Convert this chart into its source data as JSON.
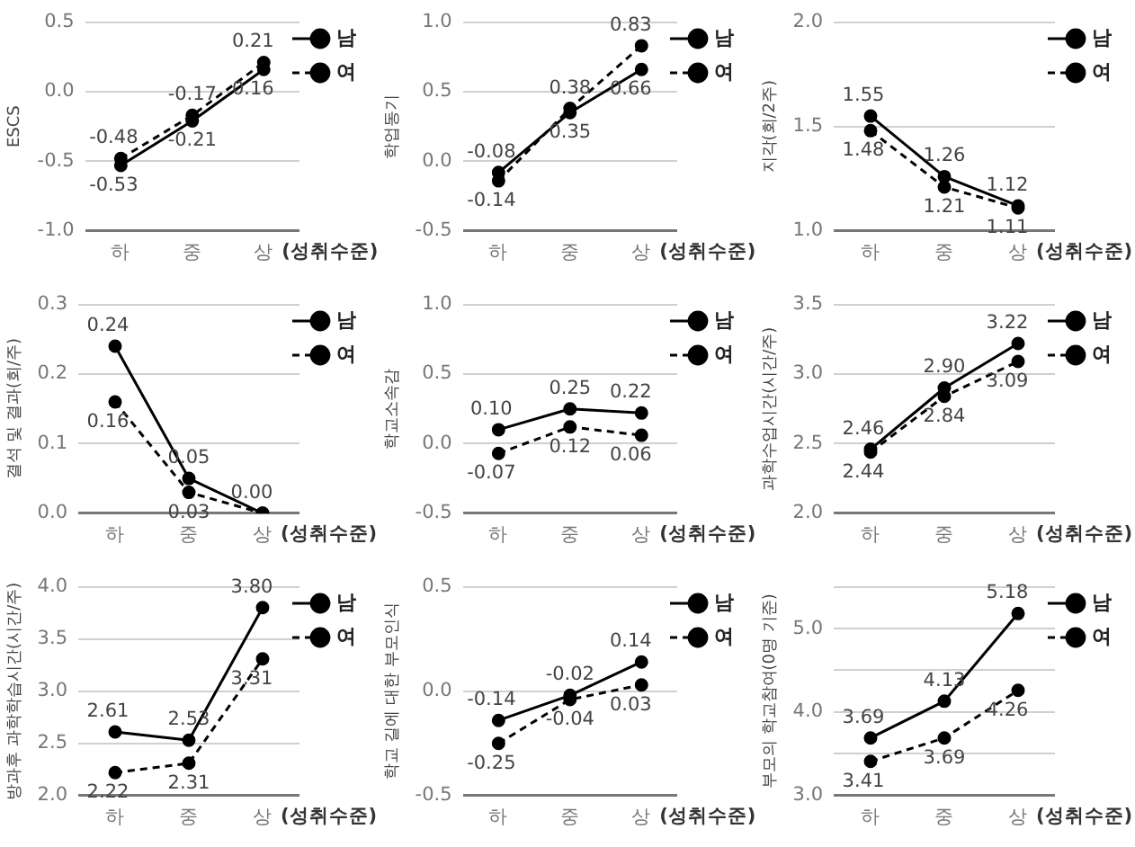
{
  "chart_data": [
    {
      "type": "line",
      "ylabel": "ESCS",
      "xlabel": "(성취수준)",
      "categories": [
        "하",
        "중",
        "상"
      ],
      "ylim": [
        -1.0,
        0.5
      ],
      "yticks": [
        {
          "value": -1.0,
          "label": "-1.0"
        },
        {
          "value": -0.5,
          "label": "-0.5"
        },
        {
          "value": 0,
          "label": "0.0"
        },
        {
          "value": 0.5,
          "label": "0.5"
        }
      ],
      "grid": "y",
      "legend": "top right",
      "marker": "circle",
      "series": [
        {
          "name": "남",
          "color": "#000000",
          "line_style": "solid",
          "values": [
            -0.53,
            -0.21,
            0.16
          ],
          "value_labels": [
            "-0.53",
            "-0.21",
            "0.16"
          ]
        },
        {
          "name": "여",
          "color": "#000000",
          "line_style": "dashed",
          "values": [
            -0.48,
            -0.17,
            0.21
          ],
          "value_labels": [
            "-0.48",
            "-0.17",
            "0.21"
          ]
        }
      ]
    },
    {
      "type": "line",
      "ylabel": "학업동기",
      "xlabel": "(성취수준)",
      "categories": [
        "하",
        "중",
        "상"
      ],
      "ylim": [
        -0.5,
        1.0
      ],
      "yticks": [
        {
          "value": -0.5,
          "label": "-0.5"
        },
        {
          "value": 0,
          "label": "0.0"
        },
        {
          "value": 0.5,
          "label": "0.5"
        },
        {
          "value": 1.0,
          "label": "1.0"
        }
      ],
      "grid": "y",
      "legend": "top right",
      "marker": "circle",
      "series": [
        {
          "name": "남",
          "color": "#000000",
          "line_style": "solid",
          "values": [
            -0.08,
            0.35,
            0.66
          ],
          "value_labels": [
            "-0.08",
            "0.35",
            "0.66"
          ]
        },
        {
          "name": "여",
          "color": "#000000",
          "line_style": "dashed",
          "values": [
            -0.14,
            0.38,
            0.83
          ],
          "value_labels": [
            "-0.14",
            "0.38",
            "0.83"
          ]
        }
      ]
    },
    {
      "type": "line",
      "ylabel": "지각(회/2주)",
      "xlabel": "(성취수준)",
      "categories": [
        "하",
        "중",
        "상"
      ],
      "ylim": [
        1.0,
        2.0
      ],
      "yticks": [
        {
          "value": 1.0,
          "label": "1.0"
        },
        {
          "value": 1.5,
          "label": "1.5"
        },
        {
          "value": 2.0,
          "label": "2.0"
        }
      ],
      "grid": "y",
      "legend": "top right",
      "marker": "circle",
      "series": [
        {
          "name": "남",
          "color": "#000000",
          "line_style": "solid",
          "values": [
            1.55,
            1.26,
            1.12
          ],
          "value_labels": [
            "1.55",
            "1.26",
            "1.12"
          ]
        },
        {
          "name": "여",
          "color": "#000000",
          "line_style": "dashed",
          "values": [
            1.48,
            1.21,
            1.11
          ],
          "value_labels": [
            "1.48",
            "1.21",
            "1.11"
          ]
        }
      ]
    },
    {
      "type": "line",
      "ylabel": "결석 및 결과(회/주)",
      "xlabel": "(성취수준)",
      "categories": [
        "하",
        "중",
        "상"
      ],
      "ylim": [
        0,
        0.3
      ],
      "yticks": [
        {
          "value": 0,
          "label": "0.0"
        },
        {
          "value": 0.1,
          "label": "0.1"
        },
        {
          "value": 0.2,
          "label": "0.2"
        },
        {
          "value": 0.3,
          "label": "0.3"
        }
      ],
      "grid": "y",
      "legend": "top right",
      "marker": "circle",
      "series": [
        {
          "name": "남",
          "color": "#000000",
          "line_style": "solid",
          "values": [
            0.24,
            0.05,
            0.0
          ],
          "value_labels": [
            "0.24",
            "0.05",
            "0.00"
          ]
        },
        {
          "name": "여",
          "color": "#000000",
          "line_style": "dashed",
          "values": [
            0.16,
            0.03,
            0.0
          ],
          "value_labels": [
            "0.16",
            "0.03",
            null
          ]
        }
      ]
    },
    {
      "type": "line",
      "ylabel": "학교소속감",
      "xlabel": "(성취수준)",
      "categories": [
        "하",
        "중",
        "상"
      ],
      "ylim": [
        -0.5,
        1.0
      ],
      "yticks": [
        {
          "value": -0.5,
          "label": "-0.5"
        },
        {
          "value": 0,
          "label": "0.0"
        },
        {
          "value": 0.5,
          "label": "0.5"
        },
        {
          "value": 1.0,
          "label": "1.0"
        }
      ],
      "grid": "y",
      "legend": "top right",
      "marker": "circle",
      "series": [
        {
          "name": "남",
          "color": "#000000",
          "line_style": "solid",
          "values": [
            0.1,
            0.25,
            0.22
          ],
          "value_labels": [
            "0.10",
            "0.25",
            "0.22"
          ]
        },
        {
          "name": "여",
          "color": "#000000",
          "line_style": "dashed",
          "values": [
            -0.07,
            0.12,
            0.06
          ],
          "value_labels": [
            "-0.07",
            "0.12",
            "0.06"
          ]
        }
      ]
    },
    {
      "type": "line",
      "ylabel": "과학수업시간(시간/주)",
      "xlabel": "(성취수준)",
      "categories": [
        "하",
        "중",
        "상"
      ],
      "ylim": [
        2.0,
        3.5
      ],
      "yticks": [
        {
          "value": 2.0,
          "label": "2.0"
        },
        {
          "value": 2.5,
          "label": "2.5"
        },
        {
          "value": 3.0,
          "label": "3.0"
        },
        {
          "value": 3.5,
          "label": "3.5"
        }
      ],
      "grid": "y",
      "legend": "top right",
      "marker": "circle",
      "series": [
        {
          "name": "남",
          "color": "#000000",
          "line_style": "solid",
          "values": [
            2.46,
            2.9,
            3.22
          ],
          "value_labels": [
            "2.46",
            "2.90",
            "3.22"
          ]
        },
        {
          "name": "여",
          "color": "#000000",
          "line_style": "dashed",
          "values": [
            2.44,
            2.84,
            3.09
          ],
          "value_labels": [
            "2.44",
            "2.84",
            "3.09"
          ]
        }
      ]
    },
    {
      "type": "line",
      "ylabel": "방과후 과학학습시간(시간/주)",
      "xlabel": "(성취수준)",
      "categories": [
        "하",
        "중",
        "상"
      ],
      "ylim": [
        2.0,
        4.0
      ],
      "yticks": [
        {
          "value": 2.0,
          "label": "2.0"
        },
        {
          "value": 2.5,
          "label": "2.5"
        },
        {
          "value": 3.0,
          "label": "3.0"
        },
        {
          "value": 3.5,
          "label": "3.5"
        },
        {
          "value": 4.0,
          "label": "4.0"
        }
      ],
      "grid": "y",
      "legend": "top right",
      "marker": "circle",
      "series": [
        {
          "name": "남",
          "color": "#000000",
          "line_style": "solid",
          "values": [
            2.61,
            2.53,
            3.8
          ],
          "value_labels": [
            "2.61",
            "2.53",
            "3.80"
          ]
        },
        {
          "name": "여",
          "color": "#000000",
          "line_style": "dashed",
          "values": [
            2.22,
            2.31,
            3.31
          ],
          "value_labels": [
            "2.22",
            "2.31",
            "3.31"
          ]
        }
      ]
    },
    {
      "type": "line",
      "ylabel": "학교 길에 대한 부모인식",
      "xlabel": "(성취수준)",
      "categories": [
        "하",
        "중",
        "상"
      ],
      "ylim": [
        -0.5,
        0.5
      ],
      "yticks": [
        {
          "value": -0.5,
          "label": "-0.5"
        },
        {
          "value": 0,
          "label": "0.0"
        },
        {
          "value": 0.5,
          "label": "0.5"
        }
      ],
      "grid": "y",
      "legend": "top right",
      "marker": "circle",
      "series": [
        {
          "name": "남",
          "color": "#000000",
          "line_style": "solid",
          "values": [
            -0.14,
            -0.02,
            0.14
          ],
          "value_labels": [
            "-0.14",
            "-0.02",
            "0.14"
          ]
        },
        {
          "name": "여",
          "color": "#000000",
          "line_style": "dashed",
          "values": [
            -0.25,
            -0.04,
            0.03
          ],
          "value_labels": [
            "-0.25",
            "-0.04",
            "0.03"
          ]
        }
      ]
    },
    {
      "type": "line",
      "ylabel": "부모의 학교참여(0명 기준)",
      "xlabel": "(성취수준)",
      "categories": [
        "하",
        "중",
        "상"
      ],
      "ylim": [
        3.0,
        5.5
      ],
      "yticks": [
        {
          "value": 3.0,
          "label": "3.0"
        },
        {
          "value": 3.5,
          "label": null
        },
        {
          "value": 4.0,
          "label": "4.0"
        },
        {
          "value": 4.5,
          "label": null
        },
        {
          "value": 5.0,
          "label": "5.0"
        },
        {
          "value": 5.5,
          "label": null
        }
      ],
      "grid": "y",
      "legend": "top right",
      "marker": "circle",
      "series": [
        {
          "name": "남",
          "color": "#000000",
          "line_style": "solid",
          "values": [
            3.69,
            4.13,
            5.18
          ],
          "value_labels": [
            "3.69",
            "4.13",
            "5.18"
          ]
        },
        {
          "name": "여",
          "color": "#000000",
          "line_style": "dashed",
          "values": [
            3.41,
            3.69,
            4.26
          ],
          "value_labels": [
            "3.41",
            "3.69",
            "4.26"
          ]
        }
      ]
    }
  ]
}
